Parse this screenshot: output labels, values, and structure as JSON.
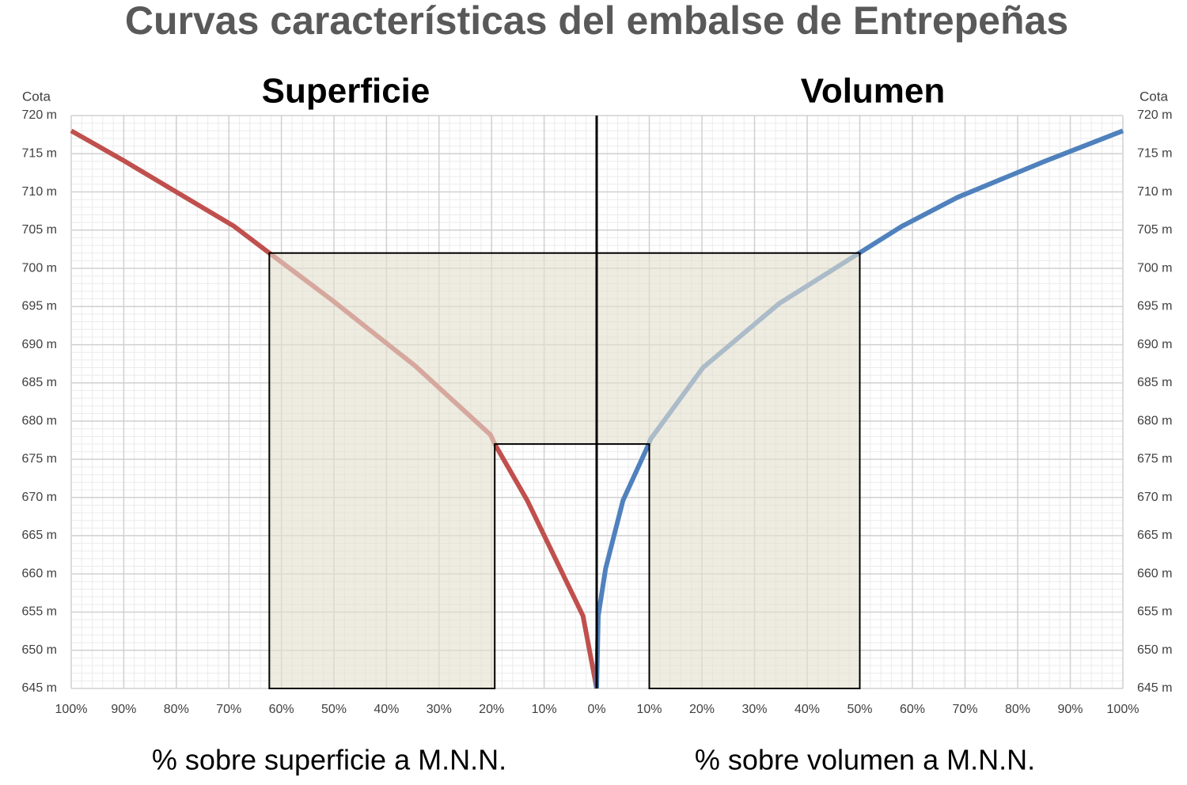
{
  "title": "Curvas características del embalse de Entrepeñas",
  "chart_data": [
    {
      "type": "line",
      "title": "Superficie",
      "xlabel": "% sobre superficie a M.N.N.",
      "ylabel": "Cota",
      "xlim": [
        100,
        0
      ],
      "ylim": [
        645,
        720
      ],
      "xticks": [
        {
          "value": 100,
          "label": "100%"
        },
        {
          "value": 90,
          "label": "90%"
        },
        {
          "value": 80,
          "label": "80%"
        },
        {
          "value": 70,
          "label": "70%"
        },
        {
          "value": 60,
          "label": "60%"
        },
        {
          "value": 50,
          "label": "50%"
        },
        {
          "value": 40,
          "label": "40%"
        },
        {
          "value": 30,
          "label": "30%"
        },
        {
          "value": 20,
          "label": "20%"
        },
        {
          "value": 10,
          "label": "10%"
        }
      ],
      "yticks": [
        {
          "value": 645,
          "label": "645 m"
        },
        {
          "value": 650,
          "label": "650 m"
        },
        {
          "value": 655,
          "label": "655 m"
        },
        {
          "value": 660,
          "label": "660 m"
        },
        {
          "value": 665,
          "label": "665 m"
        },
        {
          "value": 670,
          "label": "670 m"
        },
        {
          "value": 675,
          "label": "675 m"
        },
        {
          "value": 680,
          "label": "680 m"
        },
        {
          "value": 685,
          "label": "685 m"
        },
        {
          "value": 690,
          "label": "690 m"
        },
        {
          "value": 695,
          "label": "695 m"
        },
        {
          "value": 700,
          "label": "700 m"
        },
        {
          "value": 705,
          "label": "705 m"
        },
        {
          "value": 710,
          "label": "710 m"
        },
        {
          "value": 715,
          "label": "715 m"
        },
        {
          "value": 720,
          "label": "720 m"
        }
      ],
      "grid": true,
      "minor_grid": {
        "x": 2,
        "y": 1
      },
      "region": {
        "outer_x": 62.3,
        "inner_x": 19.4,
        "top": 702,
        "inner_top": 677
      },
      "series": [
        {
          "color": "#c0504d",
          "x": [
            100,
            90,
            80,
            69,
            62.3,
            50.3,
            34.5,
            20.2,
            19.4,
            13.2,
            2.6,
            0
          ],
          "values": [
            718,
            714.1,
            710,
            705.5,
            702,
            695.8,
            687.2,
            678.2,
            677,
            669.6,
            654.5,
            645
          ]
        }
      ]
    },
    {
      "type": "line",
      "title": "Volumen",
      "xlabel": "% sobre volumen a M.N.N.",
      "ylabel": "Cota",
      "xlim": [
        0,
        100
      ],
      "ylim": [
        645,
        720
      ],
      "xticks": [
        {
          "value": 0,
          "label": "0%"
        },
        {
          "value": 10,
          "label": "10%"
        },
        {
          "value": 20,
          "label": "20%"
        },
        {
          "value": 30,
          "label": "30%"
        },
        {
          "value": 40,
          "label": "40%"
        },
        {
          "value": 50,
          "label": "50%"
        },
        {
          "value": 60,
          "label": "60%"
        },
        {
          "value": 70,
          "label": "70%"
        },
        {
          "value": 80,
          "label": "80%"
        },
        {
          "value": 90,
          "label": "90%"
        },
        {
          "value": 100,
          "label": "100%"
        }
      ],
      "yticks": [
        {
          "value": 645,
          "label": "645 m"
        },
        {
          "value": 650,
          "label": "650 m"
        },
        {
          "value": 655,
          "label": "655 m"
        },
        {
          "value": 660,
          "label": "660 m"
        },
        {
          "value": 665,
          "label": "665 m"
        },
        {
          "value": 670,
          "label": "670 m"
        },
        {
          "value": 675,
          "label": "675 m"
        },
        {
          "value": 680,
          "label": "680 m"
        },
        {
          "value": 685,
          "label": "685 m"
        },
        {
          "value": 690,
          "label": "690 m"
        },
        {
          "value": 695,
          "label": "695 m"
        },
        {
          "value": 700,
          "label": "700 m"
        },
        {
          "value": 705,
          "label": "705 m"
        },
        {
          "value": 710,
          "label": "710 m"
        },
        {
          "value": 715,
          "label": "715 m"
        },
        {
          "value": 720,
          "label": "720 m"
        }
      ],
      "grid": true,
      "minor_grid": {
        "x": 2,
        "y": 1
      },
      "region": {
        "outer_x": 50,
        "inner_x": 10,
        "top": 702,
        "inner_top": 677
      },
      "series": [
        {
          "color": "#4f81bd",
          "x": [
            0,
            0.3,
            1.7,
            5,
            9.9,
            10.2,
            20.2,
            34.7,
            49.9,
            58,
            68.6,
            85.1,
            100
          ],
          "values": [
            645,
            654.5,
            660.7,
            669.6,
            677,
            677.6,
            687,
            695.4,
            702,
            705.5,
            709.3,
            714,
            718
          ]
        }
      ]
    }
  ]
}
